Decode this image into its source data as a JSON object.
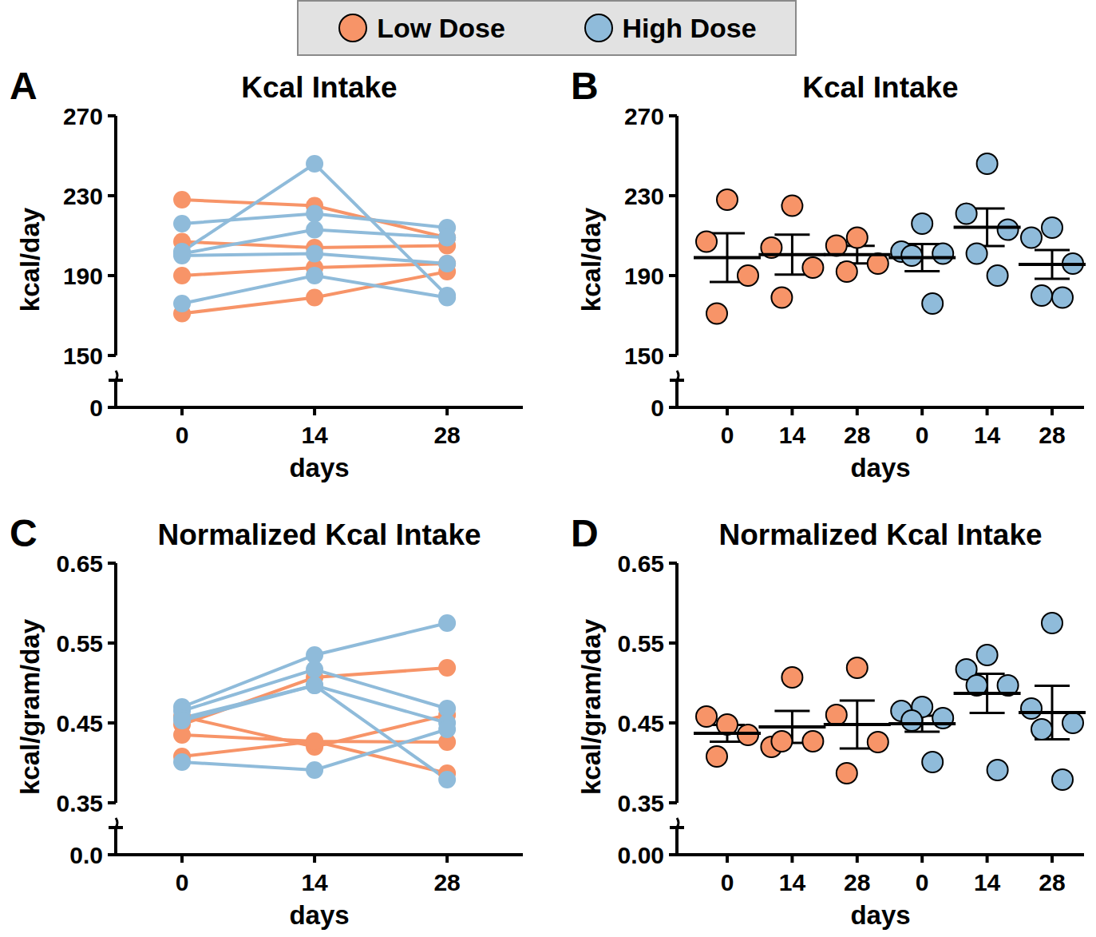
{
  "chart_data": [
    {
      "panel": "A",
      "type": "line",
      "title": "Kcal Intake",
      "x_label": "days",
      "y_label": "kcal/day",
      "x": [
        0,
        14,
        28
      ],
      "xlim": [
        -7,
        36
      ],
      "xticks": [
        0,
        14,
        28
      ],
      "ylim": [
        150,
        270
      ],
      "yticks": [
        150,
        190,
        230,
        270
      ],
      "y_break_ticks": [
        0
      ],
      "legend": "top",
      "marker": "circle",
      "series": [
        {
          "name": "Low Dose",
          "color": "#f79468",
          "subjects": [
            [
              228,
              225,
              209
            ],
            [
              207,
              204,
              205
            ],
            [
              190,
              194,
              196
            ],
            [
              171,
              179,
              192
            ]
          ]
        },
        {
          "name": "High Dose",
          "color": "#8fbbda",
          "subjects": [
            [
              202,
              246,
              180
            ],
            [
              216,
              221,
              214
            ],
            [
              201,
              213,
              209
            ],
            [
              200,
              201,
              196
            ],
            [
              176,
              190,
              179
            ]
          ]
        }
      ]
    },
    {
      "panel": "B",
      "type": "scatter",
      "title": "Kcal Intake",
      "x_label": "days",
      "y_label": "kcal/day",
      "categories": [
        "0",
        "14",
        "28",
        "0",
        "14",
        "28"
      ],
      "ylim": [
        150,
        270
      ],
      "yticks": [
        150,
        190,
        230,
        270
      ],
      "y_break_ticks": [
        0
      ],
      "marker": "circle",
      "series": [
        {
          "name": "Low Dose",
          "color": "#f79468",
          "points": [
            [
              228,
              207,
              190,
              171
            ],
            [
              225,
              204,
              194,
              179
            ],
            [
              209,
              205,
              196,
              192
            ],
            null,
            null,
            null
          ],
          "mean": [
            199,
            200.5,
            200.5,
            null,
            null,
            null
          ],
          "sem": [
            12.2,
            10,
            4.4,
            null,
            null,
            null
          ]
        },
        {
          "name": "High Dose",
          "color": "#8fbbda",
          "points": [
            null,
            null,
            null,
            [
              216,
              202,
              201,
              200,
              176
            ],
            [
              246,
              221,
              213,
              201,
              190
            ],
            [
              214,
              209,
              196,
              180,
              179
            ]
          ],
          "mean": [
            null,
            null,
            null,
            199,
            214.2,
            195.6
          ],
          "sem": [
            null,
            null,
            null,
            6.8,
            9.4,
            7.2
          ]
        }
      ]
    },
    {
      "panel": "C",
      "type": "line",
      "title": "Normalized Kcal Intake",
      "x_label": "days",
      "y_label": "kcal/gram/day",
      "x": [
        0,
        14,
        28
      ],
      "xlim": [
        -7,
        36
      ],
      "xticks": [
        0,
        14,
        28
      ],
      "ylim": [
        0.35,
        0.65
      ],
      "yticks": [
        0.35,
        0.45,
        0.55,
        0.65
      ],
      "y_break_ticks": [
        {
          "value": 0,
          "label": "0.0"
        }
      ],
      "marker": "circle",
      "series": [
        {
          "name": "Low Dose",
          "color": "#f79468",
          "subjects": [
            [
              0.448,
              0.507,
              0.519
            ],
            [
              0.458,
              0.42,
              0.46
            ],
            [
              0.435,
              0.427,
              0.426
            ],
            [
              0.408,
              0.427,
              0.387
            ]
          ]
        },
        {
          "name": "High Dose",
          "color": "#8fbbda",
          "subjects": [
            [
              0.47,
              0.535,
              0.575
            ],
            [
              0.465,
              0.517,
              0.468
            ],
            [
              0.456,
              0.497,
              0.379
            ],
            [
              0.453,
              0.497,
              0.45
            ],
            [
              0.401,
              0.391,
              0.442
            ]
          ]
        }
      ]
    },
    {
      "panel": "D",
      "type": "scatter",
      "title": "Normalized Kcal Intake",
      "x_label": "days",
      "y_label": "kcal/gram/day",
      "categories": [
        "0",
        "14",
        "28",
        "0",
        "14",
        "28"
      ],
      "ylim": [
        0.35,
        0.65
      ],
      "yticks": [
        0.35,
        0.45,
        0.55,
        0.65
      ],
      "y_break_ticks": [
        {
          "value": 0,
          "label": "0.00"
        }
      ],
      "marker": "circle",
      "series": [
        {
          "name": "Low Dose",
          "color": "#f79468",
          "points": [
            [
              0.448,
              0.458,
              0.435,
              0.408
            ],
            [
              0.507,
              0.42,
              0.427,
              0.427
            ],
            [
              0.519,
              0.46,
              0.426,
              0.387
            ],
            null,
            null,
            null
          ],
          "mean": [
            0.437,
            0.445,
            0.448,
            null,
            null,
            null
          ],
          "sem": [
            0.0105,
            0.02,
            0.03,
            null,
            null,
            null
          ]
        },
        {
          "name": "High Dose",
          "color": "#8fbbda",
          "points": [
            null,
            null,
            null,
            [
              0.47,
              0.465,
              0.456,
              0.453,
              0.401
            ],
            [
              0.535,
              0.517,
              0.497,
              0.497,
              0.391
            ],
            [
              0.575,
              0.468,
              0.45,
              0.442,
              0.379
            ]
          ],
          "mean": [
            null,
            null,
            null,
            0.449,
            0.487,
            0.463
          ],
          "sem": [
            null,
            null,
            null,
            0.01,
            0.0245,
            0.0335
          ]
        }
      ]
    }
  ]
}
